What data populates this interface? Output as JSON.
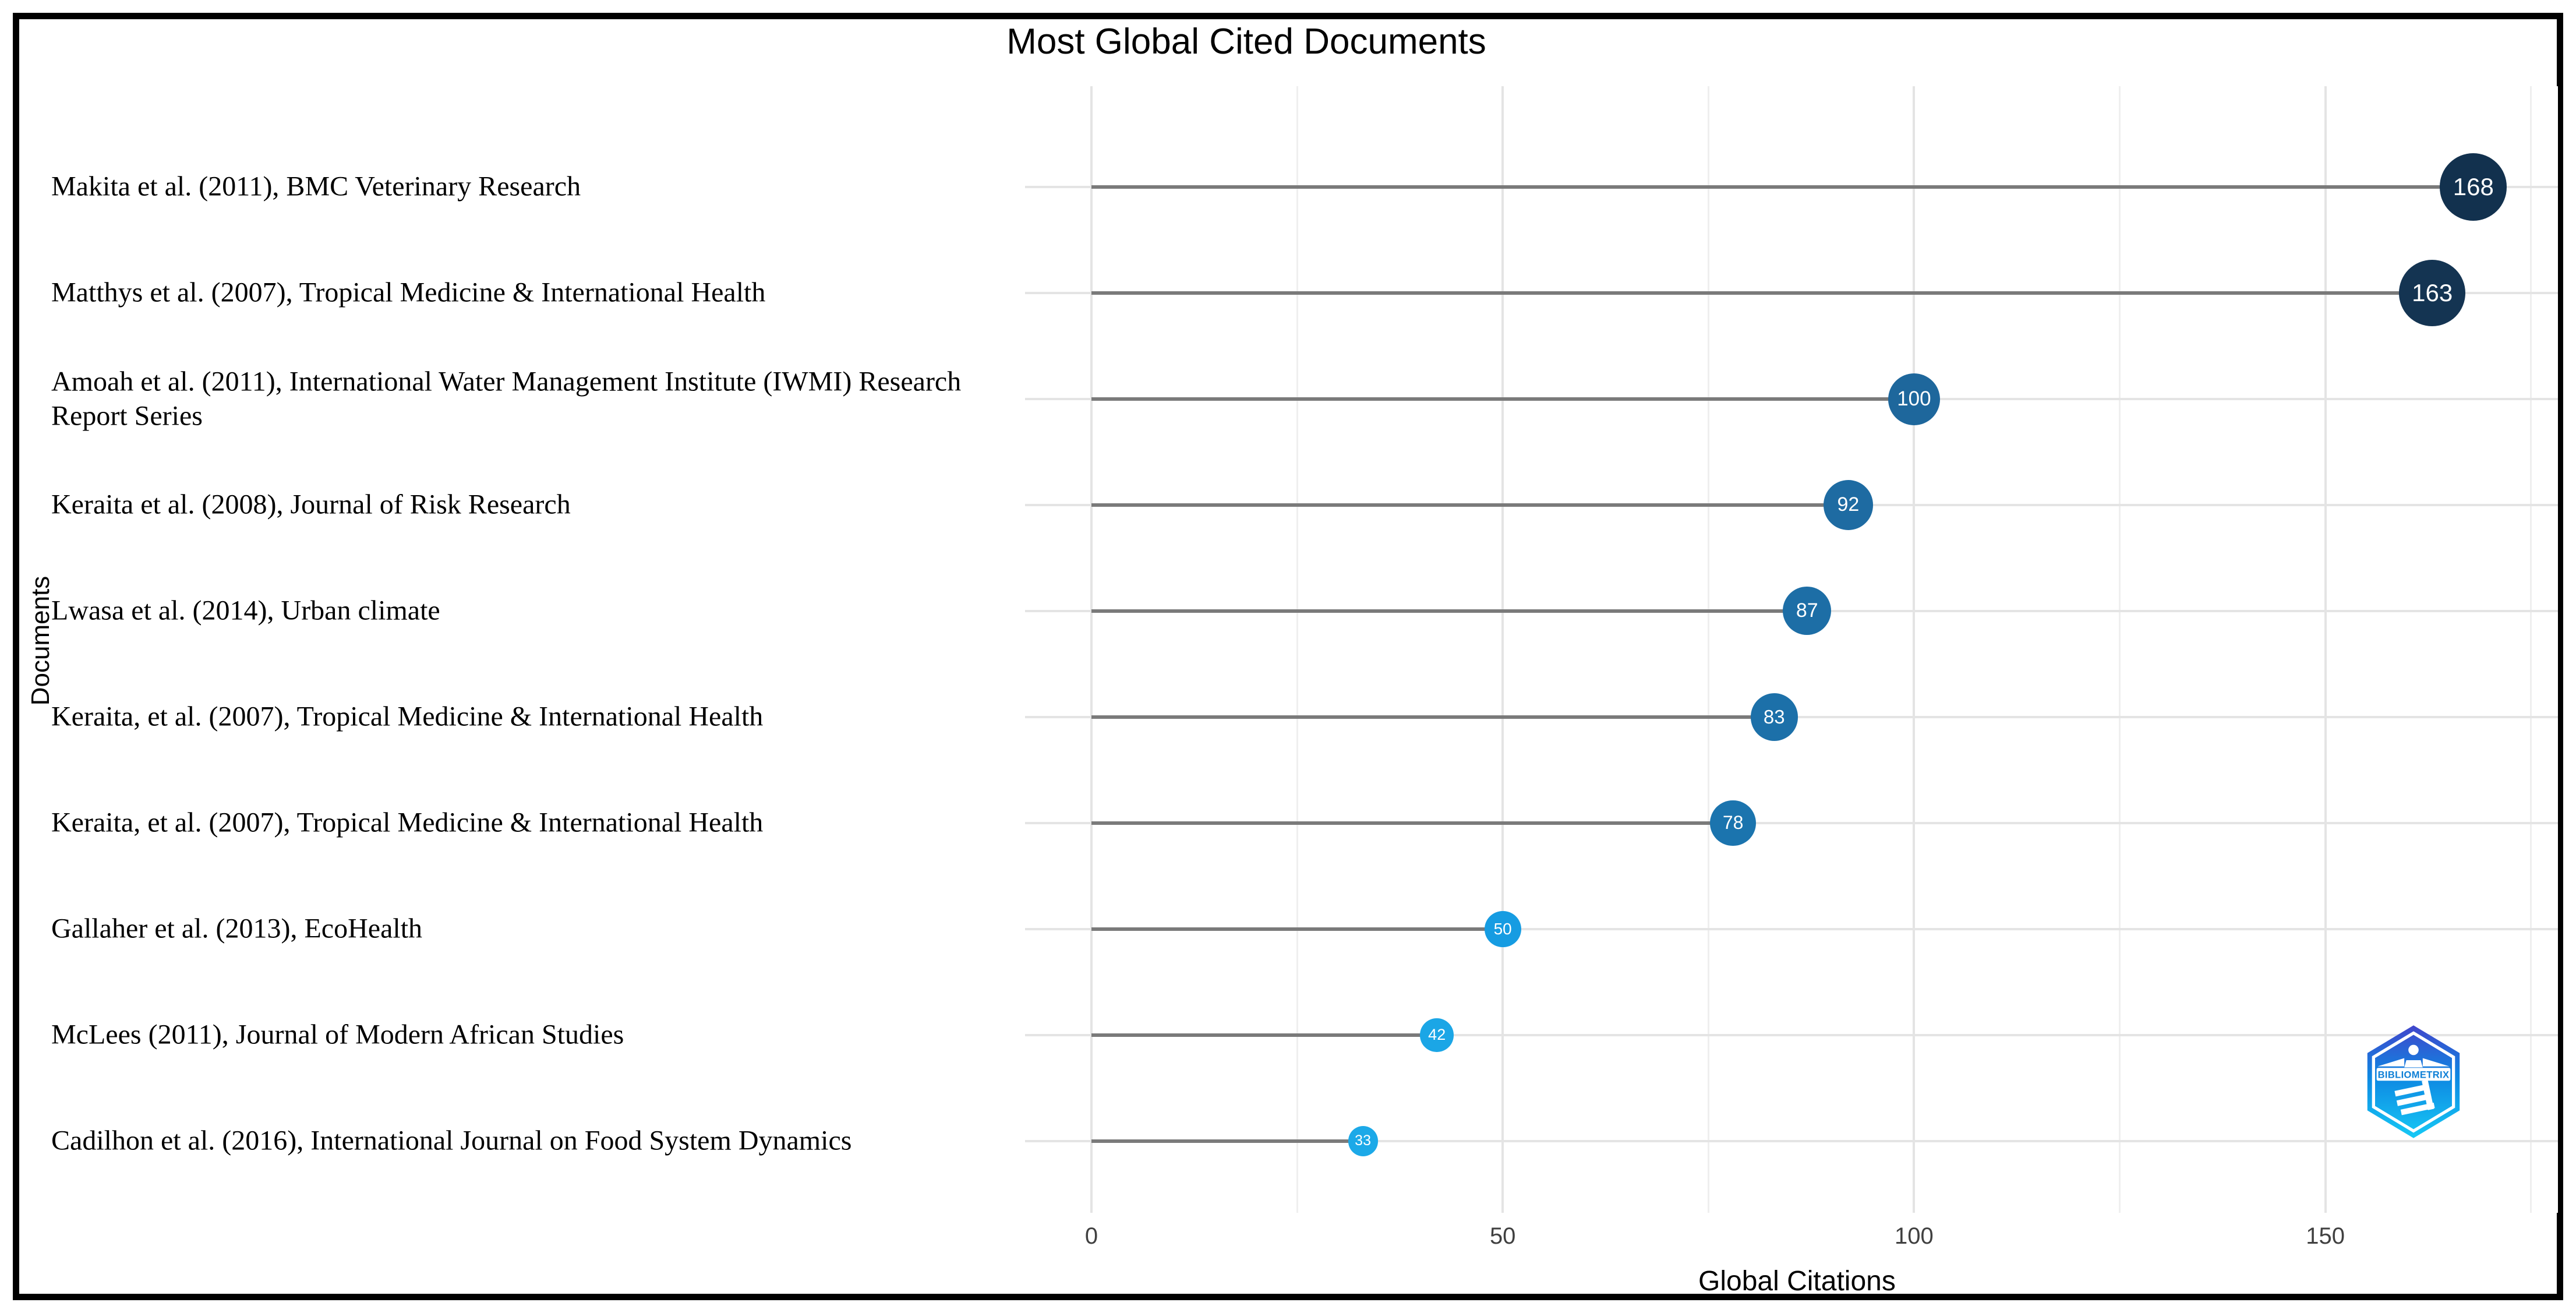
{
  "title": "Most Global Cited Documents",
  "chart_data": {
    "type": "bar",
    "variant": "horizontal-lollipop",
    "title": "Most Global Cited Documents",
    "xlabel": "Global Citations",
    "ylabel": "Documents",
    "categories": [
      "Makita et al. (2011), BMC Veterinary Research",
      "Matthys et al. (2007), Tropical Medicine & International Health",
      "Amoah et al. (2011), International Water Management Institute (IWMI) Research Report Series",
      "Keraita et al. (2008), Journal of Risk Research",
      "Lwasa et al. (2014), Urban climate",
      "Keraita, et al.  (2007), Tropical Medicine & International Health",
      "Keraita, et al.  (2007), Tropical Medicine & International Health",
      "Gallaher et al. (2013), EcoHealth",
      "McLees (2011), Journal of Modern African Studies",
      "Cadilhon et al.  (2016), International Journal on Food System Dynamics"
    ],
    "values": [
      168,
      163,
      100,
      92,
      87,
      83,
      78,
      50,
      42,
      33
    ],
    "point_colors": [
      "#12314e",
      "#143452",
      "#1e679c",
      "#1e6ba2",
      "#1d6ea6",
      "#1c70a9",
      "#1b74ae",
      "#169ce2",
      "#1ba6e6",
      "#1ca9e8"
    ],
    "value_labels_shown": true,
    "xlim": [
      0,
      178
    ],
    "x_ticks": [
      0,
      50,
      100,
      150
    ],
    "x_minor_gridlines": [
      25,
      75,
      125,
      175
    ],
    "grid": true,
    "legend": "none"
  },
  "colors": {
    "stem": "#7a7a7a",
    "grid_major": "#e4e4e4",
    "grid_minor": "#efefef",
    "tick_text": "#404040",
    "dot_value_text": "#ffffff",
    "logo_top": "#4145cb",
    "logo_mid": "#0e87e2",
    "logo_bottom": "#16c9f5",
    "logo_text": "#0d7fd6"
  },
  "logo": {
    "text": "BIBLIOMETRIX"
  }
}
